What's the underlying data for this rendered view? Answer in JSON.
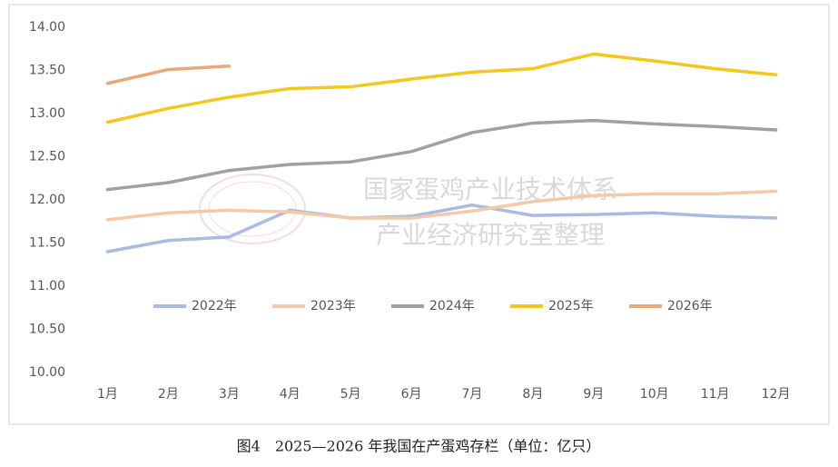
{
  "chart_data": {
    "type": "line",
    "caption": "图4　2025—2026 年我国在产蛋鸡存栏（单位：亿只）",
    "watermark": [
      "国家蛋鸡产业技术体系",
      "产业经济研究室整理"
    ],
    "categories": [
      "1月",
      "2月",
      "3月",
      "4月",
      "5月",
      "6月",
      "7月",
      "8月",
      "9月",
      "10月",
      "11月",
      "12月"
    ],
    "series": [
      {
        "name": "2022年",
        "color": "#a9bbe0",
        "values": [
          11.4,
          11.53,
          11.57,
          11.88,
          11.79,
          11.81,
          11.94,
          11.82,
          11.83,
          11.85,
          11.81,
          11.79
        ]
      },
      {
        "name": "2023年",
        "color": "#f4c9a8",
        "values": [
          11.77,
          11.85,
          11.88,
          11.86,
          11.79,
          11.79,
          11.87,
          11.98,
          12.05,
          12.07,
          12.07,
          12.1
        ]
      },
      {
        "name": "2024年",
        "color": "#a0a0a0",
        "values": [
          12.12,
          12.2,
          12.34,
          12.41,
          12.44,
          12.56,
          12.78,
          12.89,
          12.92,
          12.88,
          12.85,
          12.81
        ]
      },
      {
        "name": "2025年",
        "color": "#f2c81c",
        "values": [
          12.9,
          13.06,
          13.19,
          13.29,
          13.31,
          13.4,
          13.48,
          13.52,
          13.69,
          13.61,
          13.52,
          13.45
        ]
      },
      {
        "name": "2026年",
        "color": "#e8a97a",
        "values": [
          13.35,
          13.51,
          13.55,
          null,
          null,
          null,
          null,
          null,
          null,
          null,
          null,
          null
        ]
      }
    ],
    "ylim": [
      10,
      14
    ],
    "yticks": [
      {
        "value": 10,
        "label": "10.00"
      },
      {
        "value": 10.5,
        "label": "10.50"
      },
      {
        "value": 11,
        "label": "11.00"
      },
      {
        "value": 11.5,
        "label": "11.50"
      },
      {
        "value": 12,
        "label": "12.00"
      },
      {
        "value": 12.5,
        "label": "12.50"
      },
      {
        "value": 13,
        "label": "13.00"
      },
      {
        "value": 13.5,
        "label": "13.50"
      },
      {
        "value": 14,
        "label": "14.00"
      }
    ],
    "grid": false,
    "legend": "bottom"
  }
}
